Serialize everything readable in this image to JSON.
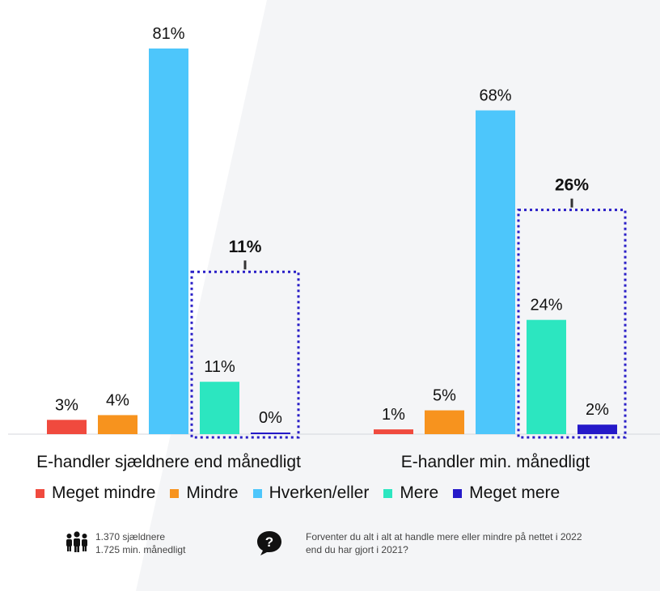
{
  "chart_data": {
    "type": "bar",
    "categories": [
      "E-handler sjældnere end månedligt",
      "E-handler min. månedligt"
    ],
    "series": [
      {
        "name": "Meget mindre",
        "values": [
          3,
          1
        ],
        "labels": [
          "3%",
          "1%"
        ],
        "color": "#f04a3e"
      },
      {
        "name": "Mindre",
        "values": [
          4,
          5
        ],
        "labels": [
          "4%",
          "5%"
        ],
        "color": "#f7931e"
      },
      {
        "name": "Hverken/eller",
        "values": [
          81,
          68
        ],
        "labels": [
          "81%",
          "68%"
        ],
        "color": "#4dc6fb"
      },
      {
        "name": "Mere",
        "values": [
          11,
          24
        ],
        "labels": [
          "11%",
          "24%"
        ],
        "color": "#2ce6c0"
      },
      {
        "name": "Meget mere",
        "values": [
          0,
          2
        ],
        "labels": [
          "0%",
          "2%"
        ],
        "color": "#2519c9"
      }
    ],
    "ylim": [
      0,
      81
    ],
    "annotations": [
      {
        "text": "11%",
        "group": 0,
        "covers": [
          "Mere",
          "Meget mere"
        ]
      },
      {
        "text": "26%",
        "group": 1,
        "covers": [
          "Mere",
          "Meget mere"
        ]
      }
    ],
    "legend_position": "bottom",
    "grid": false
  },
  "footer": {
    "sample_line1": "1.370 sjældnere",
    "sample_line2": "1.725 min. månedligt",
    "question_line1": "Forventer du alt i alt at handle mere eller mindre på nettet i 2022",
    "question_line2": "end du har gjort i 2021?",
    "sample_icon": "people-icon",
    "question_icon": "question-bubble-icon"
  }
}
